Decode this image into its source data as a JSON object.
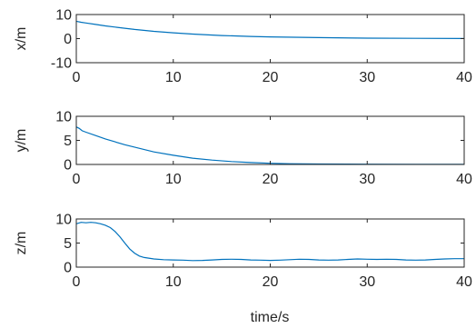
{
  "colors": {
    "line": "#0072BD",
    "axis": "#262626",
    "background": "#ffffff"
  },
  "chart_data": [
    {
      "type": "line",
      "xlabel": "",
      "ylabel": "x/m",
      "xlim": [
        0,
        40
      ],
      "ylim": [
        -10,
        10
      ],
      "xticks": [
        0,
        10,
        20,
        30,
        40
      ],
      "yticks": [
        -10,
        0,
        10
      ],
      "xtick_labels": [
        "0",
        "10",
        "20",
        "30",
        "40"
      ],
      "ytick_labels": [
        "-10",
        "0",
        "10"
      ],
      "grid": false,
      "series": [
        {
          "x": [
            0,
            0.5,
            1,
            2,
            3,
            4,
            5,
            6,
            8,
            10,
            12,
            15,
            18,
            20,
            25,
            30,
            35,
            40
          ],
          "y": [
            7.2,
            6.8,
            6.5,
            5.9,
            5.3,
            4.8,
            4.3,
            3.8,
            3.0,
            2.4,
            1.9,
            1.3,
            0.9,
            0.7,
            0.4,
            0.2,
            0.1,
            0.05
          ]
        }
      ]
    },
    {
      "type": "line",
      "xlabel": "",
      "ylabel": "y/m",
      "xlim": [
        0,
        40
      ],
      "ylim": [
        0,
        10
      ],
      "xticks": [
        0,
        10,
        20,
        30,
        40
      ],
      "yticks": [
        0,
        5,
        10
      ],
      "xtick_labels": [
        "0",
        "10",
        "20",
        "30",
        "40"
      ],
      "ytick_labels": [
        "0",
        "5",
        "10"
      ],
      "grid": false,
      "series": [
        {
          "x": [
            0,
            0.3,
            0.6,
            1,
            2,
            3,
            4,
            5,
            6,
            8,
            10,
            12,
            14,
            16,
            18,
            20,
            22,
            25,
            30,
            35,
            40
          ],
          "y": [
            7.8,
            7.5,
            7.0,
            6.7,
            6.0,
            5.3,
            4.7,
            4.1,
            3.6,
            2.6,
            1.9,
            1.3,
            0.9,
            0.6,
            0.4,
            0.25,
            0.15,
            0.1,
            0.05,
            0.03,
            0.02
          ]
        }
      ]
    },
    {
      "type": "line",
      "xlabel": "time/s",
      "ylabel": "z/m",
      "xlim": [
        0,
        40
      ],
      "ylim": [
        0,
        10
      ],
      "xticks": [
        0,
        10,
        20,
        30,
        40
      ],
      "yticks": [
        0,
        5,
        10
      ],
      "xtick_labels": [
        "0",
        "10",
        "20",
        "30",
        "40"
      ],
      "ytick_labels": [
        "0",
        "5",
        "10"
      ],
      "grid": false,
      "series": [
        {
          "x": [
            0,
            0.5,
            1,
            1.5,
            2,
            2.5,
            3,
            3.5,
            4,
            4.5,
            5,
            5.5,
            6,
            6.5,
            7,
            8,
            9,
            10,
            11,
            12,
            13,
            14,
            15,
            16,
            17,
            18,
            19,
            20,
            21,
            22,
            23,
            24,
            25,
            26,
            27,
            28,
            29,
            30,
            31,
            32,
            33,
            34,
            35,
            36,
            37,
            38,
            39,
            40
          ],
          "y": [
            9.0,
            9.3,
            9.2,
            9.3,
            9.2,
            9.0,
            8.7,
            8.2,
            7.4,
            6.3,
            5.0,
            3.8,
            2.9,
            2.3,
            2.0,
            1.7,
            1.55,
            1.5,
            1.45,
            1.35,
            1.4,
            1.5,
            1.6,
            1.65,
            1.6,
            1.5,
            1.45,
            1.4,
            1.45,
            1.55,
            1.65,
            1.6,
            1.5,
            1.45,
            1.5,
            1.6,
            1.7,
            1.65,
            1.6,
            1.65,
            1.6,
            1.5,
            1.45,
            1.5,
            1.6,
            1.7,
            1.75,
            1.75
          ]
        }
      ]
    }
  ]
}
